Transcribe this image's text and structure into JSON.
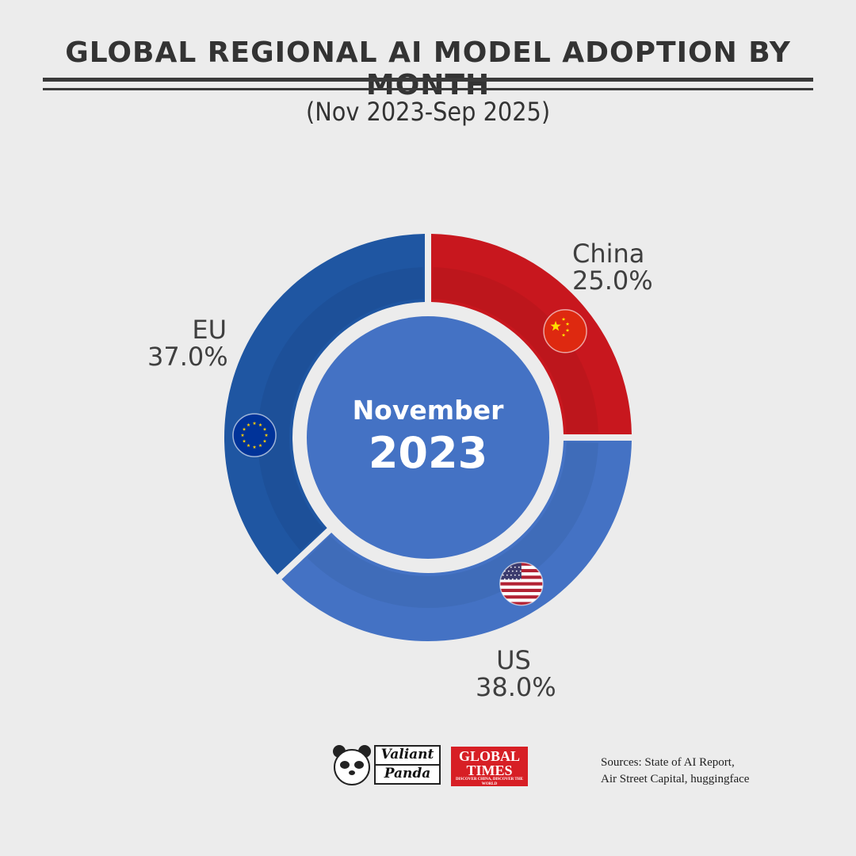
{
  "header": {
    "title": "GLOBAL REGIONAL AI MODEL ADOPTION BY MONTH",
    "subtitle": "(Nov 2023-Sep 2025)"
  },
  "center": {
    "month": "November",
    "year": "2023"
  },
  "chart_data": {
    "type": "pie",
    "variant": "donut",
    "title": "GLOBAL REGIONAL AI MODEL ADOPTION BY MONTH",
    "subtitle": "(Nov 2023-Sep 2025)",
    "period_shown": "November 2023",
    "slices": [
      {
        "name": "China",
        "value": 25.0,
        "label": "25.0%",
        "color": "#c8171e",
        "flag": "china-flag-icon"
      },
      {
        "name": "US",
        "value": 38.0,
        "label": "38.0%",
        "color": "#4472c4",
        "flag": "us-flag-icon"
      },
      {
        "name": "EU",
        "value": 37.0,
        "label": "37.0%",
        "color": "#1f56a2",
        "flag": "eu-flag-icon"
      }
    ],
    "center_color": "#4472c4"
  },
  "footer": {
    "logo_valiant": {
      "line1": "Valiant",
      "line2": "Panda"
    },
    "logo_global_times": {
      "line1": "GLOBAL",
      "line2": "TIMES",
      "tagline": "DISCOVER CHINA, DISCOVER THE WORLD"
    },
    "sources_line1": "Sources: State of AI Report,",
    "sources_line2": "Air Street Capital, huggingface"
  }
}
